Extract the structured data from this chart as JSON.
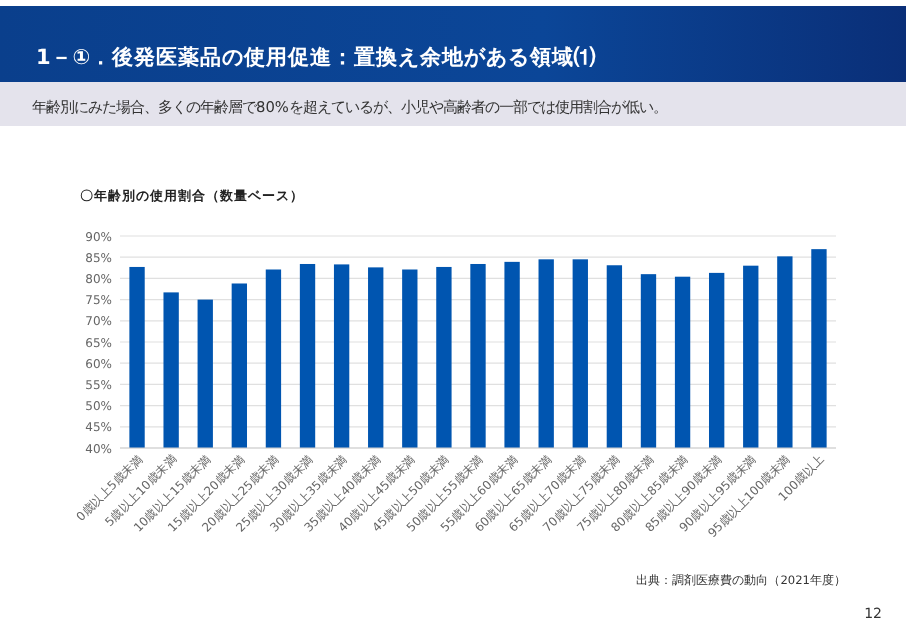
{
  "chart_data": {
    "type": "bar",
    "title": "1－①．後発医薬品の使用促進：置換え余地がある領域⑴",
    "subtitle": "年齢別にみた場合、多くの年齢層で80%を超えているが、小児や高齢者の一部では使用割合が低い。",
    "ylabel": "〇年齢別の使用割合（数量ベース）",
    "categories": [
      "0歳以上5歳未満",
      "5歳以上10歳未満",
      "10歳以上15歳未満",
      "15歳以上20歳未満",
      "20歳以上25歳未満",
      "25歳以上30歳未満",
      "30歳以上35歳未満",
      "35歳以上40歳未満",
      "40歳以上45歳未満",
      "45歳以上50歳未満",
      "50歳以上55歳未満",
      "55歳以上60歳未満",
      "60歳以上65歳未満",
      "65歳以上70歳未満",
      "70歳以上75歳未満",
      "75歳以上80歳未満",
      "80歳以上85歳未満",
      "85歳以上90歳未満",
      "90歳以上95歳未満",
      "95歳以上100歳未満",
      "100歳以上"
    ],
    "values": [
      82.7,
      76.7,
      75.0,
      78.8,
      82.1,
      83.4,
      83.3,
      82.6,
      82.1,
      82.7,
      83.4,
      83.9,
      84.5,
      84.5,
      83.1,
      81.0,
      80.4,
      81.3,
      83.0,
      85.2,
      86.9
    ],
    "color": "#0055b0",
    "ylim": [
      40,
      90
    ],
    "yticks": [
      {
        "value": 40,
        "label": "40%"
      },
      {
        "value": 45,
        "label": "45%"
      },
      {
        "value": 50,
        "label": "50%"
      },
      {
        "value": 55,
        "label": "55%"
      },
      {
        "value": 60,
        "label": "60%"
      },
      {
        "value": 65,
        "label": "65%"
      },
      {
        "value": 70,
        "label": "70%"
      },
      {
        "value": 75,
        "label": "75%"
      },
      {
        "value": 80,
        "label": "80%"
      },
      {
        "value": 85,
        "label": "85%"
      },
      {
        "value": 90,
        "label": "90%"
      }
    ],
    "grid": "y",
    "annotations": [
      "出典：調剤医療費の動向（2021年度）",
      "12"
    ]
  }
}
